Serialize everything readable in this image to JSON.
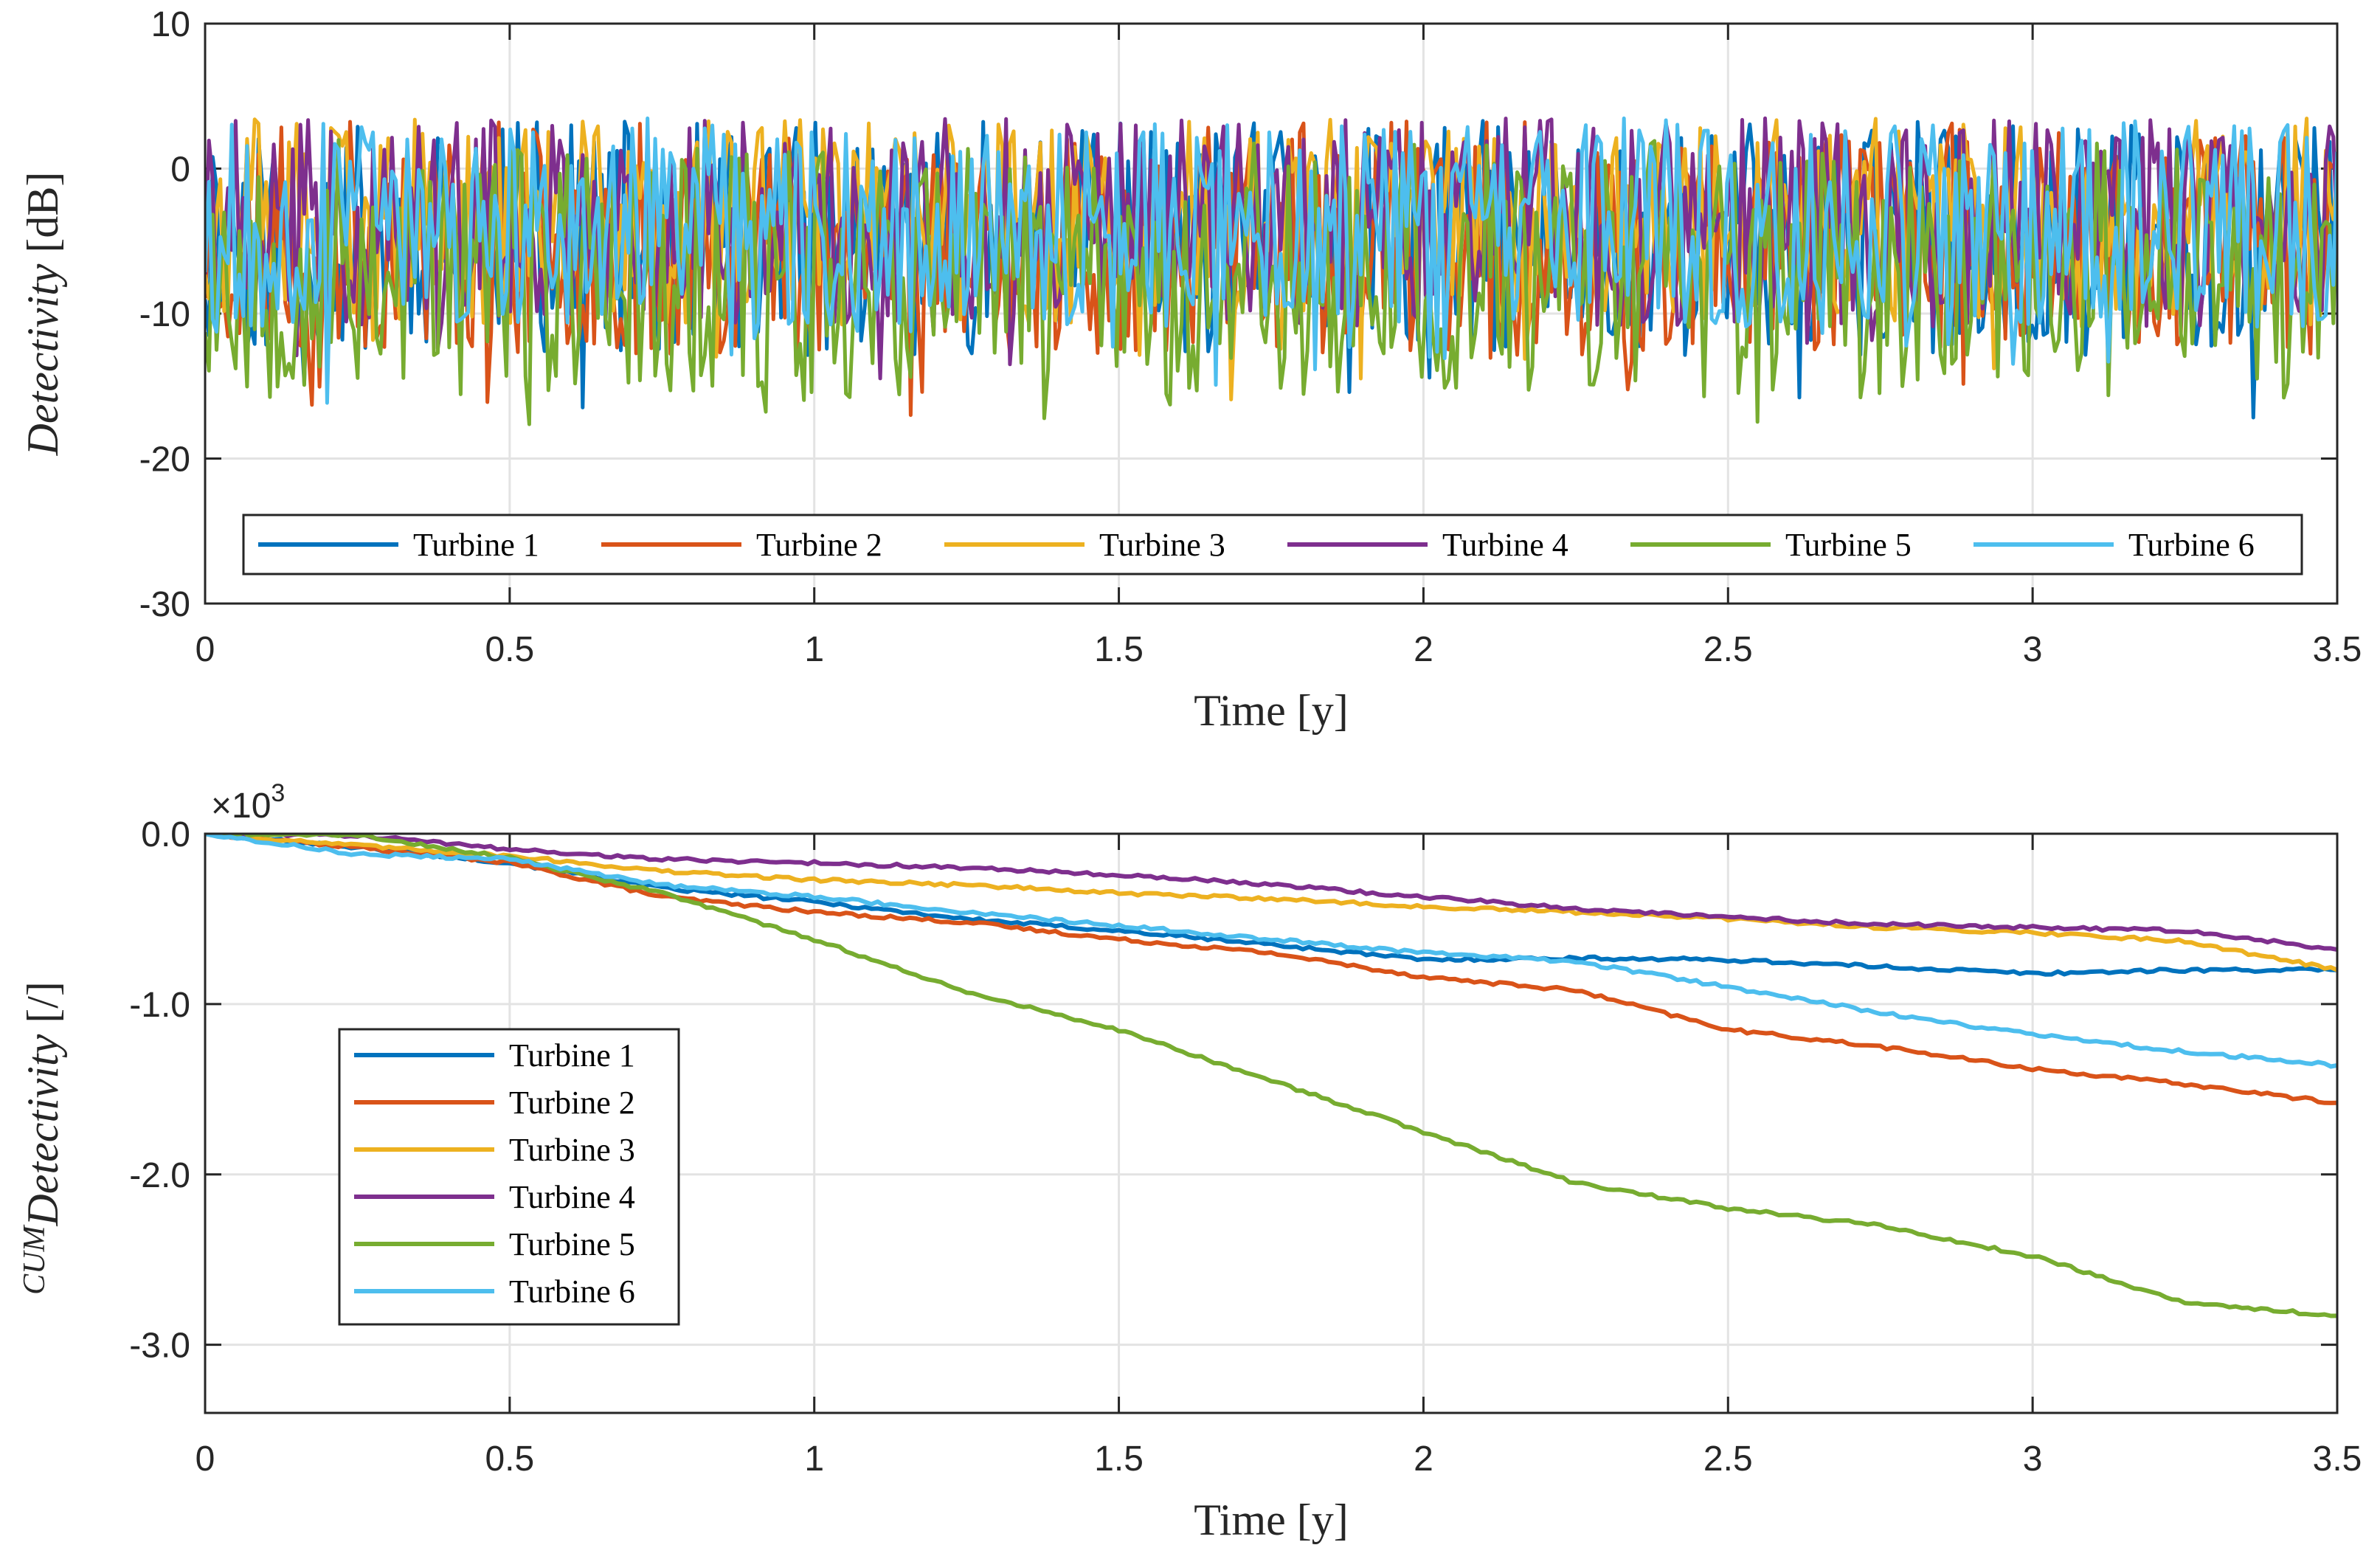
{
  "chart_data": [
    {
      "type": "line",
      "xlabel": "Time [y]",
      "ylabel_italic": "Detectivity",
      "ylabel_unit": " [dB]",
      "xlim": [
        0,
        3.5
      ],
      "ylim": [
        -30,
        10
      ],
      "xticks": [
        "0",
        "0.5",
        "1",
        "1.5",
        "2",
        "2.5",
        "3",
        "3.5"
      ],
      "xtick_values": [
        0,
        0.5,
        1,
        1.5,
        2,
        2.5,
        3,
        3.5
      ],
      "yticks": [
        "10",
        "0",
        "-10",
        "-20",
        "-30"
      ],
      "ytick_values": [
        10,
        0,
        -10,
        -20,
        -30
      ],
      "grid": true,
      "legend_placement": "bottom, horizontal",
      "series": [
        {
          "name": "Turbine 1",
          "color": "#0072BD",
          "mean": -4,
          "amp": 9,
          "seed": 11
        },
        {
          "name": "Turbine 2",
          "color": "#D95319",
          "mean": -4,
          "amp": 9,
          "seed": 23
        },
        {
          "name": "Turbine 3",
          "color": "#EDB120",
          "mean": -3,
          "amp": 8,
          "seed": 37
        },
        {
          "name": "Turbine 4",
          "color": "#7E2F8E",
          "mean": -3,
          "amp": 8,
          "seed": 41
        },
        {
          "name": "Turbine 5",
          "color": "#77AC30",
          "mean": -6,
          "amp": 10,
          "seed": 53
        },
        {
          "name": "Turbine 6",
          "color": "#4DBEEE",
          "mean": -3,
          "amp": 8,
          "seed": 67
        }
      ]
    },
    {
      "type": "line",
      "xlabel": "Time [y]",
      "ylabel_sup": "CUM",
      "ylabel_italic": "Detectivity",
      "ylabel_unit": " [/]",
      "exponent_label": "×10",
      "exponent_power": "3",
      "xlim": [
        0,
        3.5
      ],
      "ylim": [
        -3.4,
        0
      ],
      "xticks": [
        "0",
        "0.5",
        "1",
        "1.5",
        "2",
        "2.5",
        "3",
        "3.5"
      ],
      "xtick_values": [
        0,
        0.5,
        1,
        1.5,
        2,
        2.5,
        3,
        3.5
      ],
      "yticks": [
        "0.0",
        "-1.0",
        "-2.0",
        "-3.0"
      ],
      "ytick_values": [
        0,
        -1,
        -2,
        -3
      ],
      "grid": true,
      "legend_placement": "left, vertical",
      "series": [
        {
          "name": "Turbine 1",
          "color": "#0072BD",
          "x": [
            0,
            0.25,
            0.5,
            0.75,
            1.0,
            1.25,
            1.5,
            1.75,
            2.0,
            2.25,
            2.5,
            2.75,
            3.0,
            3.25,
            3.5
          ],
          "y": [
            0,
            -0.08,
            -0.17,
            -0.32,
            -0.4,
            -0.5,
            -0.57,
            -0.65,
            -0.74,
            -0.73,
            -0.74,
            -0.78,
            -0.82,
            -0.8,
            -0.8
          ]
        },
        {
          "name": "Turbine 2",
          "color": "#D95319",
          "x": [
            0,
            0.25,
            0.5,
            0.75,
            1.0,
            1.25,
            1.5,
            1.75,
            2.0,
            2.25,
            2.5,
            2.75,
            3.0,
            3.25,
            3.5
          ],
          "y": [
            0,
            -0.08,
            -0.17,
            -0.37,
            -0.46,
            -0.52,
            -0.62,
            -0.7,
            -0.84,
            -0.92,
            -1.15,
            -1.25,
            -1.38,
            -1.47,
            -1.58
          ]
        },
        {
          "name": "Turbine 3",
          "color": "#EDB120",
          "x": [
            0,
            0.25,
            0.5,
            0.75,
            1.0,
            1.25,
            1.5,
            1.75,
            2.0,
            2.25,
            2.5,
            2.75,
            3.0,
            3.25,
            3.5
          ],
          "y": [
            0,
            -0.07,
            -0.13,
            -0.22,
            -0.27,
            -0.3,
            -0.35,
            -0.38,
            -0.43,
            -0.46,
            -0.5,
            -0.55,
            -0.58,
            -0.63,
            -0.8
          ]
        },
        {
          "name": "Turbine 4",
          "color": "#7E2F8E",
          "x": [
            0,
            0.25,
            0.5,
            0.75,
            1.0,
            1.25,
            1.5,
            1.75,
            2.0,
            2.25,
            2.5,
            2.75,
            3.0,
            3.25,
            3.5
          ],
          "y": [
            0,
            -0.01,
            -0.09,
            -0.15,
            -0.17,
            -0.2,
            -0.24,
            -0.3,
            -0.37,
            -0.44,
            -0.49,
            -0.53,
            -0.55,
            -0.57,
            -0.68
          ]
        },
        {
          "name": "Turbine 5",
          "color": "#77AC30",
          "x": [
            0,
            0.25,
            0.5,
            0.75,
            1.0,
            1.25,
            1.5,
            1.75,
            2.0,
            2.25,
            2.5,
            2.75,
            3.0,
            3.25,
            3.5
          ],
          "y": [
            0,
            -0.01,
            -0.14,
            -0.35,
            -0.62,
            -0.93,
            -1.15,
            -1.45,
            -1.75,
            -2.05,
            -2.2,
            -2.3,
            -2.48,
            -2.75,
            -2.83
          ]
        },
        {
          "name": "Turbine 6",
          "color": "#4DBEEE",
          "x": [
            0,
            0.25,
            0.5,
            0.75,
            1.0,
            1.25,
            1.5,
            1.75,
            2.0,
            2.25,
            2.5,
            2.75,
            3.0,
            3.25,
            3.5
          ],
          "y": [
            0,
            -0.12,
            -0.15,
            -0.3,
            -0.37,
            -0.46,
            -0.54,
            -0.62,
            -0.7,
            -0.75,
            -0.9,
            -1.05,
            -1.18,
            -1.28,
            -1.36
          ]
        }
      ]
    }
  ]
}
